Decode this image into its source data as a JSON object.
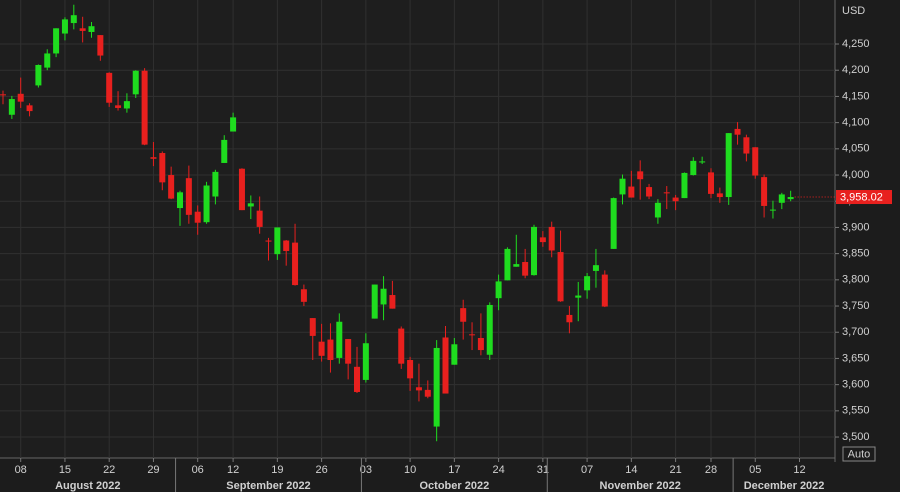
{
  "chart_data": {
    "type": "candlestick",
    "y_label": "USD",
    "x": [
      "2022-08-04",
      "2022-08-05",
      "2022-08-08",
      "2022-08-09",
      "2022-08-10",
      "2022-08-11",
      "2022-08-12",
      "2022-08-15",
      "2022-08-16",
      "2022-08-17",
      "2022-08-18",
      "2022-08-19",
      "2022-08-22",
      "2022-08-23",
      "2022-08-24",
      "2022-08-25",
      "2022-08-26",
      "2022-08-29",
      "2022-08-30",
      "2022-08-31",
      "2022-09-01",
      "2022-09-02",
      "2022-09-06",
      "2022-09-07",
      "2022-09-08",
      "2022-09-09",
      "2022-09-12",
      "2022-09-13",
      "2022-09-14",
      "2022-09-15",
      "2022-09-16",
      "2022-09-19",
      "2022-09-20",
      "2022-09-21",
      "2022-09-22",
      "2022-09-23",
      "2022-09-26",
      "2022-09-27",
      "2022-09-28",
      "2022-09-29",
      "2022-09-30",
      "2022-10-03",
      "2022-10-04",
      "2022-10-05",
      "2022-10-06",
      "2022-10-07",
      "2022-10-10",
      "2022-10-11",
      "2022-10-12",
      "2022-10-13",
      "2022-10-14",
      "2022-10-17",
      "2022-10-18",
      "2022-10-19",
      "2022-10-20",
      "2022-10-21",
      "2022-10-24",
      "2022-10-25",
      "2022-10-26",
      "2022-10-27",
      "2022-10-28",
      "2022-10-31",
      "2022-11-01",
      "2022-11-02",
      "2022-11-03",
      "2022-11-04",
      "2022-11-07",
      "2022-11-08",
      "2022-11-09",
      "2022-11-10",
      "2022-11-11",
      "2022-11-14",
      "2022-11-15",
      "2022-11-16",
      "2022-11-17",
      "2022-11-18",
      "2022-11-21",
      "2022-11-22",
      "2022-11-23",
      "2022-11-25",
      "2022-11-28",
      "2022-11-29",
      "2022-11-30",
      "2022-12-01",
      "2022-12-02",
      "2022-12-05",
      "2022-12-06",
      "2022-12-07",
      "2022-12-08",
      "2022-12-09"
    ],
    "open": [
      4154,
      4115,
      4155,
      4133,
      4171,
      4205,
      4232,
      4270,
      4290,
      4280,
      4273,
      4267,
      4195,
      4133,
      4127,
      4154,
      4199,
      4034,
      4042,
      4000,
      3937,
      3994,
      3930,
      3910,
      3959,
      4023,
      4083,
      4012,
      3940,
      3932,
      3875,
      3849,
      3875,
      3871,
      3782,
      3727,
      3682,
      3686,
      3651,
      3687,
      3634,
      3609,
      3726,
      3753,
      3771,
      3707,
      3647,
      3595,
      3590,
      3520,
      3690,
      3638,
      3746,
      3696,
      3689,
      3657,
      3765,
      3799,
      3825,
      3834,
      3809,
      3881,
      3901,
      3853,
      3733,
      3766,
      3780,
      3817,
      3810,
      3859,
      3963,
      3978,
      4007,
      3977,
      3919,
      3967,
      3957,
      3956,
      4000,
      4024,
      4005,
      3965,
      3958,
      4088,
      4072,
      4053,
      3996,
      3934,
      3947,
      3954
    ],
    "high": [
      4161,
      4151,
      4186,
      4137,
      4211,
      4240,
      4280,
      4301,
      4325,
      4302,
      4292,
      4267,
      4196,
      4160,
      4156,
      4200,
      4204,
      4063,
      4045,
      4016,
      3970,
      4018,
      3942,
      3987,
      4010,
      4076,
      4119,
      4013,
      3961,
      3959,
      3880,
      3900,
      3876,
      3907,
      3791,
      3727,
      3716,
      3717,
      3736,
      3687,
      3672,
      3698,
      3791,
      3807,
      3798,
      3711,
      3653,
      3640,
      3608,
      3685,
      3712,
      3689,
      3762,
      3719,
      3736,
      3757,
      3810,
      3862,
      3886,
      3859,
      3905,
      3893,
      3911,
      3894,
      3750,
      3796,
      3813,
      3859,
      3818,
      3957,
      4001,
      4008,
      4028,
      3983,
      3954,
      3979,
      3962,
      4005,
      4034,
      4035,
      4013,
      3976,
      4080,
      4101,
      4077,
      4053,
      4001,
      3951,
      3966,
      3970
    ],
    "low": [
      4135,
      4107,
      4128,
      4112,
      4167,
      4200,
      4225,
      4257,
      4278,
      4253,
      4262,
      4218,
      4130,
      4123,
      4119,
      4147,
      4057,
      4017,
      3971,
      3954,
      3903,
      3907,
      3886,
      3907,
      3944,
      4023,
      4083,
      3933,
      3916,
      3888,
      3837,
      3838,
      3827,
      3789,
      3750,
      3647,
      3644,
      3623,
      3640,
      3610,
      3584,
      3604,
      3726,
      3723,
      3745,
      3630,
      3588,
      3568,
      3574,
      3492,
      3583,
      3638,
      3686,
      3666,
      3656,
      3647,
      3742,
      3799,
      3825,
      3803,
      3808,
      3863,
      3843,
      3758,
      3698,
      3721,
      3764,
      3785,
      3748,
      3859,
      3944,
      3957,
      3953,
      3954,
      3907,
      3935,
      3933,
      3956,
      3999,
      4021,
      3956,
      3947,
      3943,
      4058,
      4026,
      3993,
      3919,
      3917,
      3935,
      3950
    ],
    "close": [
      4152,
      4145,
      4140,
      4122,
      4210,
      4232,
      4280,
      4297,
      4305,
      4275,
      4284,
      4228,
      4138,
      4128,
      4141,
      4199,
      4058,
      4031,
      3986,
      3955,
      3967,
      3924,
      3909,
      3980,
      4006,
      4067,
      4110,
      3933,
      3946,
      3901,
      3873,
      3900,
      3855,
      3790,
      3758,
      3693,
      3655,
      3647,
      3720,
      3640,
      3586,
      3679,
      3791,
      3783,
      3745,
      3640,
      3612,
      3589,
      3577,
      3670,
      3583,
      3677,
      3720,
      3695,
      3666,
      3752,
      3797,
      3859,
      3830,
      3808,
      3901,
      3872,
      3856,
      3759,
      3719,
      3770,
      3807,
      3828,
      3749,
      3956,
      3993,
      3957,
      3992,
      3959,
      3947,
      3965,
      3950,
      4004,
      4027,
      4026,
      3964,
      3958,
      4080,
      4077,
      4041,
      3999,
      3941,
      3934,
      3963,
      3958
    ],
    "up_color": "#1fdc1f",
    "down_color": "#e8201e",
    "ylim": [
      3460,
      4334
    ],
    "yticks": [
      {
        "value": 3500,
        "label": "3,500"
      },
      {
        "value": 3550,
        "label": "3,550"
      },
      {
        "value": 3600,
        "label": "3,600"
      },
      {
        "value": 3650,
        "label": "3,650"
      },
      {
        "value": 3700,
        "label": "3,700"
      },
      {
        "value": 3750,
        "label": "3,750"
      },
      {
        "value": 3800,
        "label": "3,800"
      },
      {
        "value": 3850,
        "label": "3,850"
      },
      {
        "value": 3900,
        "label": "3,900"
      },
      {
        "value": 3950,
        "label": "3,950"
      },
      {
        "value": 4000,
        "label": "4,000"
      },
      {
        "value": 4050,
        "label": "4,050"
      },
      {
        "value": 4100,
        "label": "4,100"
      },
      {
        "value": 4150,
        "label": "4,150"
      },
      {
        "value": 4200,
        "label": "4,200"
      },
      {
        "value": 4250,
        "label": "4,250"
      }
    ],
    "xticks": [
      {
        "value": "2022-08-08",
        "label": "08"
      },
      {
        "value": "2022-08-15",
        "label": "15"
      },
      {
        "value": "2022-08-22",
        "label": "22"
      },
      {
        "value": "2022-08-29",
        "label": "29"
      },
      {
        "value": "2022-09-06",
        "label": "06"
      },
      {
        "value": "2022-09-12",
        "label": "12"
      },
      {
        "value": "2022-09-19",
        "label": "19"
      },
      {
        "value": "2022-09-26",
        "label": "26"
      },
      {
        "value": "2022-10-03",
        "label": "03"
      },
      {
        "value": "2022-10-10",
        "label": "10"
      },
      {
        "value": "2022-10-17",
        "label": "17"
      },
      {
        "value": "2022-10-24",
        "label": "24"
      },
      {
        "value": "2022-10-31",
        "label": "31"
      },
      {
        "value": "2022-11-07",
        "label": "07"
      },
      {
        "value": "2022-11-14",
        "label": "14"
      },
      {
        "value": "2022-11-21",
        "label": "21"
      },
      {
        "value": "2022-11-28",
        "label": "28"
      },
      {
        "value": "2022-12-05",
        "label": "05"
      },
      {
        "value": "2022-12-12",
        "label": "12"
      }
    ],
    "month_ticks": [
      {
        "value": "2022-08",
        "label": "August 2022"
      },
      {
        "value": "2022-09",
        "label": "September 2022"
      },
      {
        "value": "2022-10",
        "label": "October 2022"
      },
      {
        "value": "2022-11",
        "label": "November 2022"
      },
      {
        "value": "2022-12",
        "label": "December 2022"
      }
    ],
    "last_price": {
      "value": 3958.02,
      "label": "3,958.02"
    },
    "grid": true
  },
  "controls": {
    "scale_mode": "Auto"
  }
}
